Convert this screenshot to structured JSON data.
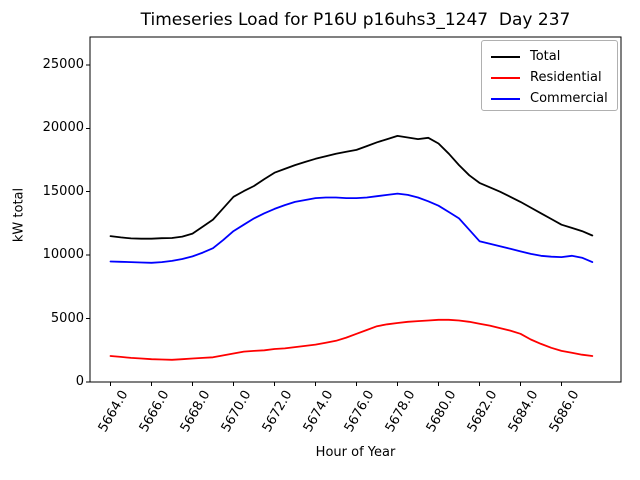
{
  "chart_data": {
    "type": "line",
    "title": "Timeseries Load for P16U p16uhs3_1247  Day 237",
    "xlabel": "Hour of Year",
    "ylabel": "kW total",
    "grid": false,
    "legend_position": "upper right",
    "xlim": [
      5663.0,
      5688.9
    ],
    "ylim": [
      0,
      27200
    ],
    "x_start": 5664.0,
    "x_step": 0.5,
    "x_tick_values": [
      5664,
      5666,
      5668,
      5670,
      5672,
      5674,
      5676,
      5678,
      5680,
      5682,
      5684,
      5686
    ],
    "x_tick_labels": [
      "5664.0",
      "5666.0",
      "5668.0",
      "5670.0",
      "5672.0",
      "5674.0",
      "5676.0",
      "5678.0",
      "5680.0",
      "5682.0",
      "5684.0",
      "5686.0"
    ],
    "y_tick_values": [
      0,
      5000,
      10000,
      15000,
      20000,
      25000
    ],
    "y_tick_labels": [
      "0",
      "5000",
      "10000",
      "15000",
      "20000",
      "25000"
    ],
    "series": [
      {
        "name": "Total",
        "color": "#000000",
        "values": [
          11500,
          11400,
          11320,
          11300,
          11300,
          11340,
          11350,
          11460,
          11700,
          12250,
          12800,
          13700,
          14600,
          15050,
          15450,
          16000,
          16500,
          16800,
          17100,
          17350,
          17600,
          17800,
          18000,
          18150,
          18300,
          18600,
          18900,
          19150,
          19400,
          19280,
          19150,
          19250,
          18800,
          18000,
          17100,
          16300,
          15700,
          15350,
          15000,
          14600,
          14200,
          13750,
          13300,
          12850,
          12400,
          12150,
          11900,
          11550
        ]
      },
      {
        "name": "Residential",
        "color": "#ff0000",
        "values": [
          2050,
          1975,
          1900,
          1850,
          1800,
          1775,
          1750,
          1800,
          1850,
          1900,
          1950,
          2100,
          2250,
          2400,
          2450,
          2500,
          2600,
          2650,
          2750,
          2850,
          2950,
          3100,
          3250,
          3500,
          3800,
          4100,
          4400,
          4550,
          4650,
          4750,
          4800,
          4850,
          4900,
          4900,
          4850,
          4750,
          4600,
          4450,
          4250,
          4050,
          3800,
          3350,
          3000,
          2700,
          2450,
          2300,
          2150,
          2050
        ]
      },
      {
        "name": "Commercial",
        "color": "#0000ff",
        "values": [
          9500,
          9475,
          9450,
          9420,
          9400,
          9450,
          9550,
          9700,
          9900,
          10200,
          10550,
          11200,
          11900,
          12400,
          12900,
          13300,
          13650,
          13950,
          14200,
          14350,
          14500,
          14550,
          14550,
          14500,
          14500,
          14550,
          14650,
          14750,
          14850,
          14750,
          14550,
          14250,
          13900,
          13400,
          12900,
          12000,
          11100,
          10900,
          10700,
          10500,
          10300,
          10100,
          9950,
          9880,
          9850,
          9950,
          9800,
          9450
        ]
      }
    ]
  }
}
